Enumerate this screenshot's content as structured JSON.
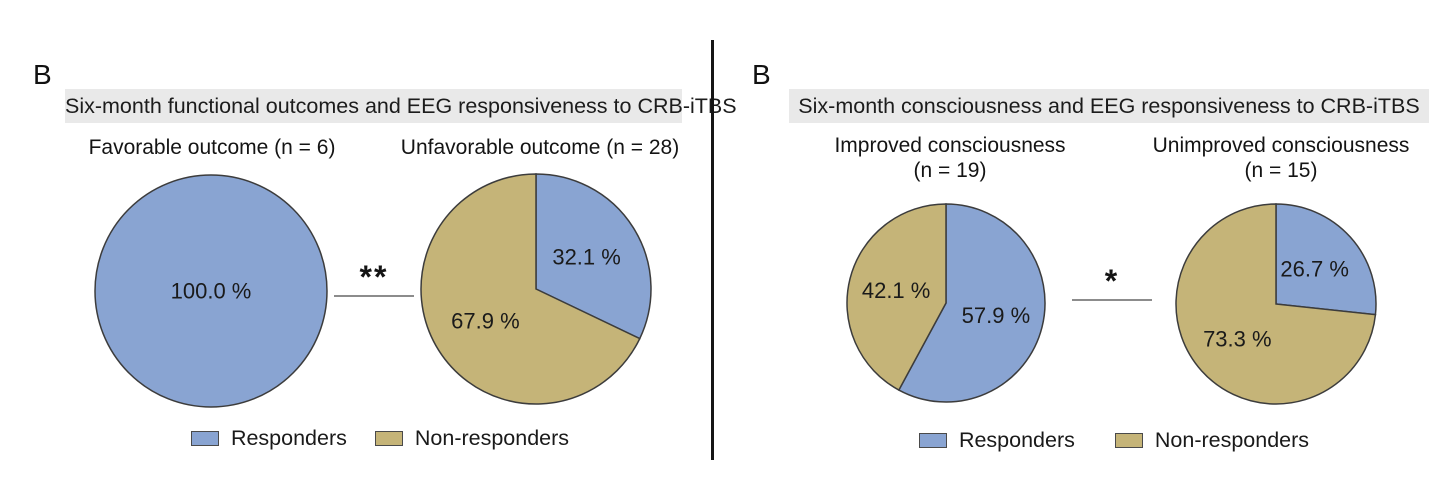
{
  "colors": {
    "responders_blue": "#89a4d2",
    "non_responders_tan": "#c5b478",
    "pie_edge": "#3c3c3c",
    "header_bg": "#e9e9e9",
    "sig_line_gray": "#8c8c8c",
    "divider_black": "#151515",
    "text": "#1a1a1a"
  },
  "panels": [
    {
      "label": "B",
      "header": "Six-month functional outcomes and EEG responsiveness to CRB-iTBS",
      "significance": "**",
      "legend": [
        {
          "label": "Responders",
          "color": "#89a4d2"
        },
        {
          "label": "Non-responders",
          "color": "#c5b478"
        }
      ]
    },
    {
      "label": "B",
      "header": "Six-month consciousness and EEG responsiveness to CRB-iTBS",
      "significance": "*",
      "legend": [
        {
          "label": "Responders",
          "color": "#89a4d2"
        },
        {
          "label": "Non-responders",
          "color": "#c5b478"
        }
      ]
    }
  ],
  "chart_data": [
    {
      "type": "pie",
      "panel": 0,
      "title": "Favorable outcome (n = 6)",
      "n": 6,
      "start_angle_deg": 0,
      "direction": "clockwise",
      "legend_position": "bottom",
      "slices": [
        {
          "label": "Responders",
          "value_pct": 100.0,
          "text": "100.0 %",
          "color": "#89a4d2"
        }
      ]
    },
    {
      "type": "pie",
      "panel": 0,
      "title": "Unfavorable outcome (n = 28)",
      "n": 28,
      "start_angle_deg": 0,
      "direction": "clockwise",
      "legend_position": "bottom",
      "slices": [
        {
          "label": "Responders",
          "value_pct": 32.1,
          "text": "32.1 %",
          "color": "#89a4d2"
        },
        {
          "label": "Non-responders",
          "value_pct": 67.9,
          "text": "67.9 %",
          "color": "#c5b478"
        }
      ]
    },
    {
      "type": "pie",
      "panel": 1,
      "title": "Improved consciousness\n(n = 19)",
      "n": 19,
      "start_angle_deg": 0,
      "direction": "clockwise",
      "legend_position": "bottom",
      "slices": [
        {
          "label": "Responders",
          "value_pct": 57.9,
          "text": "57.9 %",
          "color": "#89a4d2"
        },
        {
          "label": "Non-responders",
          "value_pct": 42.1,
          "text": "42.1 %",
          "color": "#c5b478"
        }
      ]
    },
    {
      "type": "pie",
      "panel": 1,
      "title": "Unimproved consciousness\n(n = 15)",
      "n": 15,
      "start_angle_deg": 0,
      "direction": "clockwise",
      "legend_position": "bottom",
      "slices": [
        {
          "label": "Responders",
          "value_pct": 26.7,
          "text": "26.7 %",
          "color": "#89a4d2"
        },
        {
          "label": "Non-responders",
          "value_pct": 73.3,
          "text": "73.3 %",
          "color": "#c5b478"
        }
      ]
    }
  ]
}
